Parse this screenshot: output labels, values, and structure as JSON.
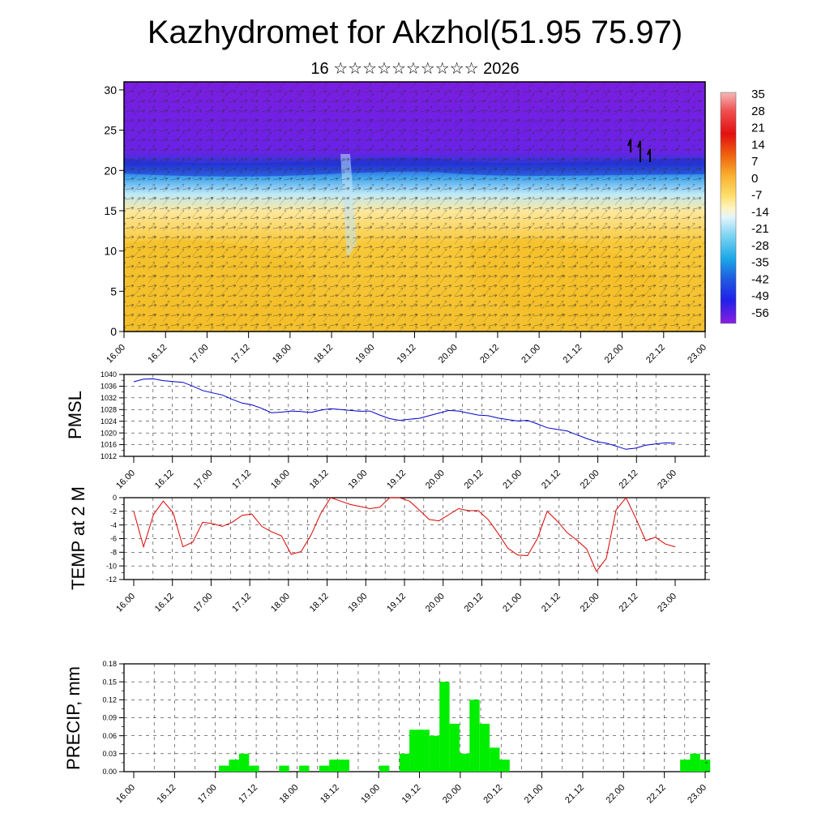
{
  "title": "Kazhydromet for Akzhol(51.95 75.97)",
  "subtitle": "16 ☆☆☆☆☆☆☆☆☆☆ 2026",
  "time_labels": [
    "16.00",
    "16.12",
    "17.00",
    "17.12",
    "18.00",
    "18.12",
    "19.00",
    "19.12",
    "20.00",
    "20.12",
    "21.00",
    "21.12",
    "22.00",
    "22.12",
    "23.00"
  ],
  "colors": {
    "pmsl_line": "#0000cc",
    "temp_line": "#dd0000",
    "precip_bar": "#00ee00"
  },
  "chart_data": [
    {
      "type": "heatmap",
      "name": "cross-section",
      "ylim": [
        0,
        31
      ],
      "y_ticks": [
        "0",
        "5",
        "10",
        "15",
        "20",
        "25",
        "30"
      ],
      "colorbar_labels": [
        "35",
        "28",
        "21",
        "14",
        "7",
        "0",
        "-7",
        "-14",
        "-21",
        "-28",
        "-35",
        "-42",
        "-49",
        "-56"
      ],
      "x": [
        "16.00",
        "16.12",
        "17.00",
        "17.12",
        "18.00",
        "18.12",
        "19.00",
        "19.12",
        "20.00",
        "20.12",
        "21.00",
        "21.12",
        "22.00",
        "22.12",
        "23.00"
      ]
    },
    {
      "type": "line",
      "name": "pmsl",
      "ylabel": "PMSL",
      "ylim": [
        1012,
        1040
      ],
      "y_ticks": [
        "1012",
        "1016",
        "1020",
        "1024",
        "1028",
        "1032",
        "1036",
        "1040"
      ],
      "x_range": [
        0,
        14
      ],
      "values": [
        1037.5,
        1038.4,
        1038.5,
        1037.9,
        1037.6,
        1037.3,
        1036,
        1034.5,
        1033.7,
        1033,
        1031.5,
        1030.2,
        1029.6,
        1028.4,
        1026.9,
        1027.1,
        1027.5,
        1027.3,
        1027,
        1027.8,
        1028.3,
        1028,
        1027.7,
        1027.4,
        1027.5,
        1026.1,
        1024.9,
        1024.3,
        1024.7,
        1025,
        1025.9,
        1026.8,
        1027.7,
        1027.5,
        1026.8,
        1026.1,
        1025.9,
        1025.1,
        1024.6,
        1024.1,
        1024.3,
        1023.1,
        1021.8,
        1021.2,
        1020.7,
        1019.4,
        1018.1,
        1017,
        1016.5,
        1015.5,
        1014.4,
        1014.8,
        1015.8,
        1016.2,
        1016.6,
        1016.5
      ]
    },
    {
      "type": "line",
      "name": "temp",
      "ylabel": "TEMP at 2 M",
      "ylim": [
        -12,
        0
      ],
      "y_ticks": [
        "-12",
        "-10",
        "-8",
        "-6",
        "-4",
        "-2",
        "0"
      ],
      "x_range": [
        0,
        14
      ],
      "values": [
        -2,
        -7.2,
        -2.5,
        -0.5,
        -2.2,
        -7.2,
        -6.5,
        -3.6,
        -3.8,
        -4.2,
        -3.6,
        -2.6,
        -2.4,
        -4.2,
        -5,
        -5.6,
        -8.3,
        -7.9,
        -5.5,
        -2.3,
        0,
        -0.5,
        -1,
        -1.3,
        -1.6,
        -1.4,
        0,
        0,
        -0.5,
        -1.8,
        -3.2,
        -3.4,
        -2.5,
        -1.6,
        -1.9,
        -1.9,
        -3.2,
        -5.2,
        -7.4,
        -8.4,
        -8.5,
        -6,
        -2,
        -3.4,
        -5.1,
        -6.2,
        -7.5,
        -10.8,
        -8.9,
        -1.8,
        0,
        -3,
        -6.3,
        -5.8,
        -6.8,
        -7.2
      ]
    },
    {
      "type": "bar",
      "name": "precip",
      "ylabel": "PRECIP, mm",
      "ylim": [
        0,
        0.18
      ],
      "y_ticks": [
        "0.00",
        "0.03",
        "0.06",
        "0.09",
        "0.12",
        "0.15",
        "0.18"
      ],
      "x_range": [
        0,
        14
      ],
      "values": [
        0,
        0,
        0,
        0,
        0,
        0,
        0,
        0,
        0,
        0.01,
        0.02,
        0.03,
        0.01,
        0,
        0,
        0.01,
        0,
        0.01,
        0,
        0.01,
        0.02,
        0.02,
        0,
        0,
        0,
        0.01,
        0,
        0.03,
        0.07,
        0.07,
        0.06,
        0.15,
        0.08,
        0.03,
        0.12,
        0.08,
        0.04,
        0.02,
        0,
        0,
        0,
        0,
        0,
        0,
        0,
        0,
        0,
        0,
        0,
        0,
        0,
        0,
        0,
        0,
        0,
        0.02,
        0.03,
        0.02
      ]
    }
  ]
}
